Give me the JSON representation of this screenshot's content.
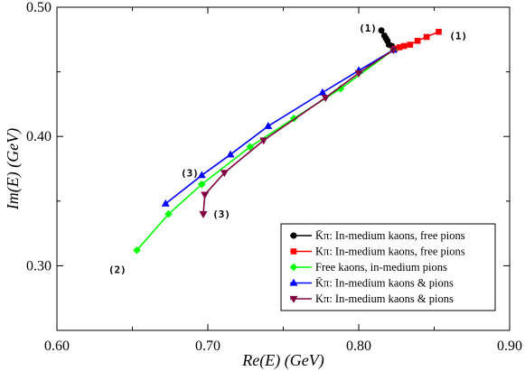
{
  "chart_data": {
    "type": "line",
    "xlabel": "Re(E) (GeV)",
    "ylabel": "Im(E) (GeV)",
    "xlim": [
      0.6,
      0.9
    ],
    "ylim": [
      0.25,
      0.5
    ],
    "x_ticks": [
      0.6,
      0.7,
      0.8,
      0.9
    ],
    "y_ticks": [
      0.3,
      0.4,
      0.5
    ],
    "x_tick_labels": [
      "0.60",
      "0.70",
      "0.80",
      "0.90"
    ],
    "y_tick_labels": [
      "0.30",
      "0.40",
      "0.50"
    ],
    "grid": false,
    "legend_position": "bottom-right",
    "series": [
      {
        "name": "K̄π: In-medium kaons, free pions",
        "color": "#000000",
        "marker": "circle",
        "x": [
          0.815,
          0.817,
          0.818,
          0.819,
          0.82,
          0.822,
          0.824
        ],
        "y": [
          0.482,
          0.478,
          0.476,
          0.474,
          0.471,
          0.47,
          0.468
        ]
      },
      {
        "name": "Kπ: In-medium kaons, free pions",
        "color": "#ff0000",
        "marker": "square",
        "x": [
          0.853,
          0.845,
          0.839,
          0.834,
          0.83,
          0.827,
          0.824
        ],
        "y": [
          0.481,
          0.477,
          0.474,
          0.471,
          0.47,
          0.469,
          0.468
        ]
      },
      {
        "name": "Free kaons, in-medium pions",
        "color": "#00ff00",
        "marker": "diamond",
        "x": [
          0.653,
          0.674,
          0.696,
          0.728,
          0.757,
          0.788,
          0.823
        ],
        "y": [
          0.312,
          0.34,
          0.363,
          0.392,
          0.414,
          0.437,
          0.467
        ]
      },
      {
        "name": "K̄π: In-medium kaons & pions",
        "color": "#0000ff",
        "marker": "triangle-up",
        "x": [
          0.672,
          0.696,
          0.715,
          0.74,
          0.776,
          0.8,
          0.823
        ],
        "y": [
          0.348,
          0.37,
          0.386,
          0.408,
          0.434,
          0.451,
          0.467
        ]
      },
      {
        "name": "Kπ: In-medium kaons & pions",
        "color": "#800040",
        "marker": "triangle-down",
        "x": [
          0.697,
          0.698,
          0.711,
          0.737,
          0.778,
          0.8,
          0.823
        ],
        "y": [
          0.34,
          0.355,
          0.372,
          0.397,
          0.43,
          0.449,
          0.467
        ]
      }
    ],
    "annotations": [
      {
        "text": "(1)",
        "x": 0.806,
        "y": 0.484
      },
      {
        "text": "(1)",
        "x": 0.866,
        "y": 0.478
      },
      {
        "text": "(3)",
        "x": 0.688,
        "y": 0.372
      },
      {
        "text": "(3)",
        "x": 0.709,
        "y": 0.34
      },
      {
        "text": "(2)",
        "x": 0.64,
        "y": 0.297
      }
    ]
  }
}
